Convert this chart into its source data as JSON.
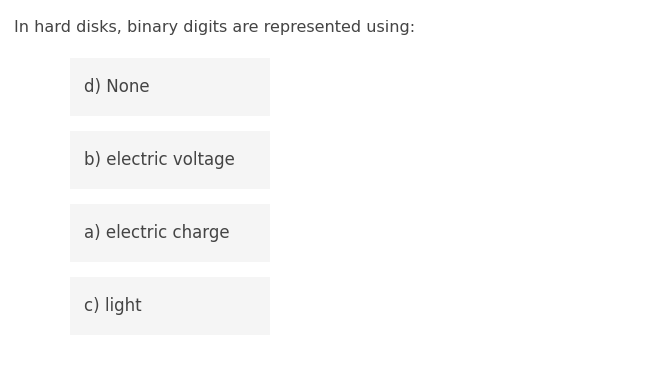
{
  "title": "In hard disks, binary digits are represented using:",
  "options": [
    "d) None",
    "b) electric voltage",
    "a) electric charge",
    "c) light"
  ],
  "background_color": "#ffffff",
  "box_color": "#f5f5f5",
  "title_color": "#444444",
  "text_color": "#444444",
  "title_fontsize": 11.5,
  "option_fontsize": 12,
  "fig_width": 6.61,
  "fig_height": 3.71,
  "dpi": 100
}
